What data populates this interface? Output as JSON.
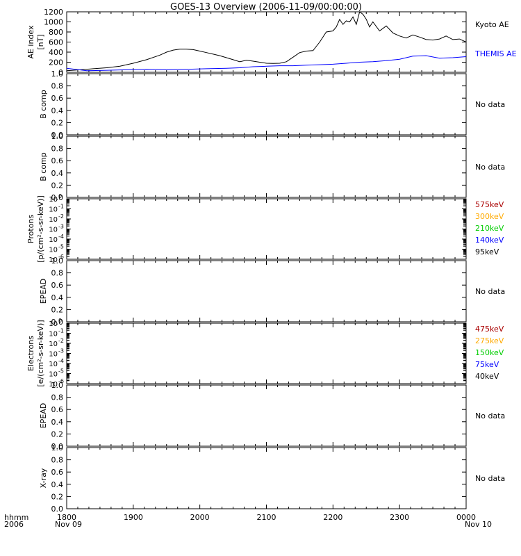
{
  "title": "GOES-13 Overview (2006-11-09/00:00:00)",
  "colors": {
    "black": "#000000",
    "blue": "#0000ff",
    "darkred": "#aa0000",
    "orange": "#ffaa00",
    "green": "#00cc00"
  },
  "x_axis": {
    "ticks": [
      "1800",
      "1900",
      "2000",
      "2100",
      "2200",
      "2300",
      "0000"
    ],
    "date_left": "Nov 09",
    "date_right": "Nov 10",
    "label_top": "hhmm",
    "label_bottom": "2006",
    "hours_range": [
      18,
      24
    ]
  },
  "chart_data": [
    {
      "type": "line",
      "ylabel_lines": [
        "AE index",
        "[nT]"
      ],
      "ylim": [
        0,
        1200
      ],
      "yticks": [
        "0",
        "200",
        "400",
        "600",
        "800",
        "1000",
        "1200"
      ],
      "series": [
        {
          "name": "Kyoto AE",
          "color": "#000000",
          "x": [
            18.0,
            18.2,
            18.4,
            18.6,
            18.8,
            19.0,
            19.2,
            19.4,
            19.5,
            19.6,
            19.7,
            19.8,
            19.9,
            20.0,
            20.1,
            20.2,
            20.3,
            20.4,
            20.5,
            20.6,
            20.7,
            20.8,
            20.9,
            21.0,
            21.1,
            21.2,
            21.3,
            21.4,
            21.5,
            21.6,
            21.7,
            21.8,
            21.9,
            22.0,
            22.05,
            22.1,
            22.15,
            22.2,
            22.25,
            22.3,
            22.35,
            22.4,
            22.45,
            22.5,
            22.55,
            22.6,
            22.7,
            22.8,
            22.9,
            23.0,
            23.1,
            23.2,
            23.3,
            23.4,
            23.5,
            23.6,
            23.7,
            23.8,
            23.9,
            24.0
          ],
          "values": [
            30,
            50,
            70,
            90,
            120,
            180,
            250,
            340,
            400,
            440,
            460,
            460,
            450,
            420,
            390,
            360,
            330,
            290,
            250,
            210,
            240,
            220,
            200,
            180,
            175,
            180,
            210,
            300,
            390,
            420,
            430,
            600,
            800,
            820,
            900,
            1050,
            950,
            1020,
            1000,
            1100,
            950,
            1200,
            1150,
            1050,
            900,
            1000,
            820,
            920,
            780,
            720,
            680,
            740,
            700,
            650,
            640,
            660,
            720,
            650,
            660,
            600
          ]
        },
        {
          "name": "THEMIS AE",
          "color": "#0000ff",
          "x": [
            18.0,
            18.3,
            18.6,
            18.9,
            19.2,
            19.5,
            19.8,
            20.1,
            20.4,
            20.6,
            20.8,
            21.0,
            21.2,
            21.4,
            21.6,
            21.8,
            22.0,
            22.2,
            22.4,
            22.6,
            22.8,
            23.0,
            23.2,
            23.4,
            23.6,
            23.8,
            24.0
          ],
          "values": [
            80,
            30,
            40,
            50,
            60,
            50,
            60,
            70,
            80,
            90,
            110,
            120,
            130,
            130,
            140,
            150,
            160,
            180,
            200,
            210,
            230,
            260,
            320,
            330,
            280,
            290,
            310
          ]
        }
      ]
    },
    {
      "type": "line",
      "ylabel": "B comp",
      "ylim": [
        0,
        1
      ],
      "yticks": [
        "0.0",
        "0.2",
        "0.4",
        "0.6",
        "0.8",
        "1.0"
      ],
      "note": "No data",
      "series": []
    },
    {
      "type": "line",
      "ylabel": "B comp",
      "ylim": [
        0,
        1
      ],
      "yticks": [
        "0.0",
        "0.2",
        "0.4",
        "0.6",
        "0.8",
        "1.0"
      ],
      "note": "No data",
      "series": []
    },
    {
      "type": "line",
      "log": true,
      "ylabel_lines": [
        "Protons",
        "[p/(cm²-s-sr-keV)]"
      ],
      "ylim": [
        1e-06,
        1
      ],
      "ytick_exponents": [
        "0",
        "-1",
        "-2",
        "-3",
        "-4",
        "-5",
        "-6"
      ],
      "legend": [
        {
          "name": "575keV",
          "color": "#aa0000"
        },
        {
          "name": "300keV",
          "color": "#ffaa00"
        },
        {
          "name": "210keV",
          "color": "#00cc00"
        },
        {
          "name": "140keV",
          "color": "#0000ff"
        },
        {
          "name": "95keV",
          "color": "#000000"
        }
      ],
      "series": []
    },
    {
      "type": "line",
      "ylabel": "EPEAD",
      "ylim": [
        0,
        1
      ],
      "yticks": [
        "0.0",
        "0.2",
        "0.4",
        "0.6",
        "0.8",
        "1.0"
      ],
      "note": "No data",
      "series": []
    },
    {
      "type": "line",
      "log": true,
      "ylabel_lines": [
        "Electrons",
        "[e/(cm²-s-sr-keV)]"
      ],
      "ylim": [
        1e-06,
        1
      ],
      "ytick_exponents": [
        "0",
        "-1",
        "-2",
        "-3",
        "-4",
        "-5",
        "-6"
      ],
      "legend": [
        {
          "name": "475keV",
          "color": "#aa0000"
        },
        {
          "name": "275keV",
          "color": "#ffaa00"
        },
        {
          "name": "150keV",
          "color": "#00cc00"
        },
        {
          "name": "75keV",
          "color": "#0000ff"
        },
        {
          "name": "40keV",
          "color": "#000000"
        }
      ],
      "series": []
    },
    {
      "type": "line",
      "ylabel": "EPEAD",
      "ylim": [
        0,
        1
      ],
      "yticks": [
        "0.0",
        "0.2",
        "0.4",
        "0.6",
        "0.8",
        "1.0"
      ],
      "note": "No data",
      "series": []
    },
    {
      "type": "line",
      "ylabel": "X-ray",
      "ylim": [
        0,
        1
      ],
      "yticks": [
        "0.0",
        "0.2",
        "0.4",
        "0.6",
        "0.8",
        "1.0"
      ],
      "note": "No data",
      "series": []
    }
  ]
}
